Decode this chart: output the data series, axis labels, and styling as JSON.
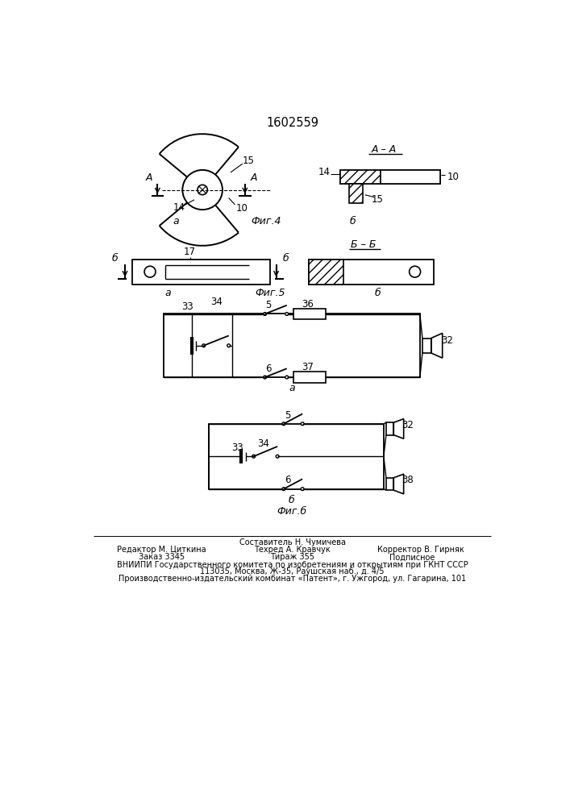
{
  "bg_color": "#ffffff",
  "title": "1602559",
  "fig4_caption": "Фиг.4",
  "fig5_caption": "Фиг.5",
  "fig6_caption": "Фиг.б"
}
